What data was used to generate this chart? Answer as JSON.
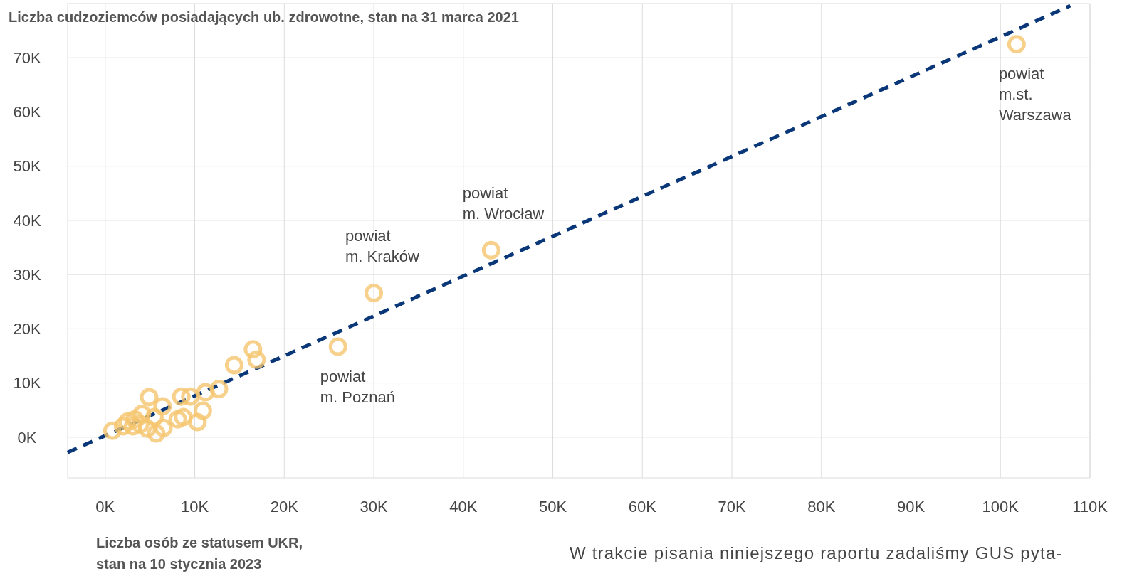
{
  "chart_data": {
    "type": "scatter",
    "title": "Liczba cudzoziemców posiadających ub. zdrowotne, stan na 31 marca 2021",
    "xlabel": "Liczba osób ze statusem UKR,\nstan na 10 stycznia 2023",
    "xlim": [
      -4.2,
      110
    ],
    "ylim": [
      -7.5,
      80
    ],
    "xticks": [
      {
        "value": 0,
        "label": "0K"
      },
      {
        "value": 10,
        "label": "10K"
      },
      {
        "value": 20,
        "label": "20K"
      },
      {
        "value": 30,
        "label": "30K"
      },
      {
        "value": 40,
        "label": "40K"
      },
      {
        "value": 50,
        "label": "50K"
      },
      {
        "value": 60,
        "label": "60K"
      },
      {
        "value": 70,
        "label": "70K"
      },
      {
        "value": 80,
        "label": "80K"
      },
      {
        "value": 90,
        "label": "90K"
      },
      {
        "value": 100,
        "label": "100K"
      },
      {
        "value": 110,
        "label": "110K"
      }
    ],
    "yticks": [
      {
        "value": 0,
        "label": "0K"
      },
      {
        "value": 10,
        "label": "10K"
      },
      {
        "value": 20,
        "label": "20K"
      },
      {
        "value": 30,
        "label": "30K"
      },
      {
        "value": 40,
        "label": "40K"
      },
      {
        "value": 50,
        "label": "50K"
      },
      {
        "value": 60,
        "label": "60K"
      },
      {
        "value": 70,
        "label": "70K"
      }
    ],
    "grid": true,
    "series": [
      {
        "color": "#f5c66e",
        "marker": "circle",
        "x": [
          101.8,
          43.1,
          30.0,
          26.0,
          16.5,
          16.9,
          14.4,
          12.7,
          11.2,
          10.9,
          10.3,
          9.5,
          8.5,
          8.7,
          6.4,
          4.9,
          4.1,
          3.9,
          3.1,
          2.0,
          0.8,
          5.7,
          6.5,
          4.7,
          5.5,
          8.1,
          3.3,
          2.5
        ],
        "values": [
          72.5,
          34.5,
          26.6,
          16.7,
          16.2,
          14.3,
          13.3,
          8.9,
          8.3,
          4.9,
          2.8,
          7.5,
          7.5,
          3.7,
          5.7,
          7.4,
          4.3,
          2.4,
          2.0,
          2.0,
          1.2,
          0.7,
          1.7,
          1.6,
          3.7,
          3.3,
          3.3,
          2.9
        ]
      },
      {
        "type": "line",
        "color": "#0a3778",
        "line_style": "dashed",
        "marker": "none",
        "x": [
          -4.2,
          107.8
        ],
        "values": [
          -2.8,
          79.6
        ]
      }
    ],
    "annotations": [
      {
        "text": "powiat\nm.st.\nWarszawa",
        "x": 101.8,
        "y": 72.5
      },
      {
        "text": "powiat\nm. Wrocław",
        "x": 43.1,
        "y": 34.5
      },
      {
        "text": "powiat\nm. Kraków",
        "x": 30.0,
        "y": 26.6
      },
      {
        "text": "powiat\nm. Poznań",
        "x": 26.0,
        "y": 16.7
      },
      "W trakcie pisania niniejszego raportu zadaliśmy GUS pyta-"
    ]
  }
}
